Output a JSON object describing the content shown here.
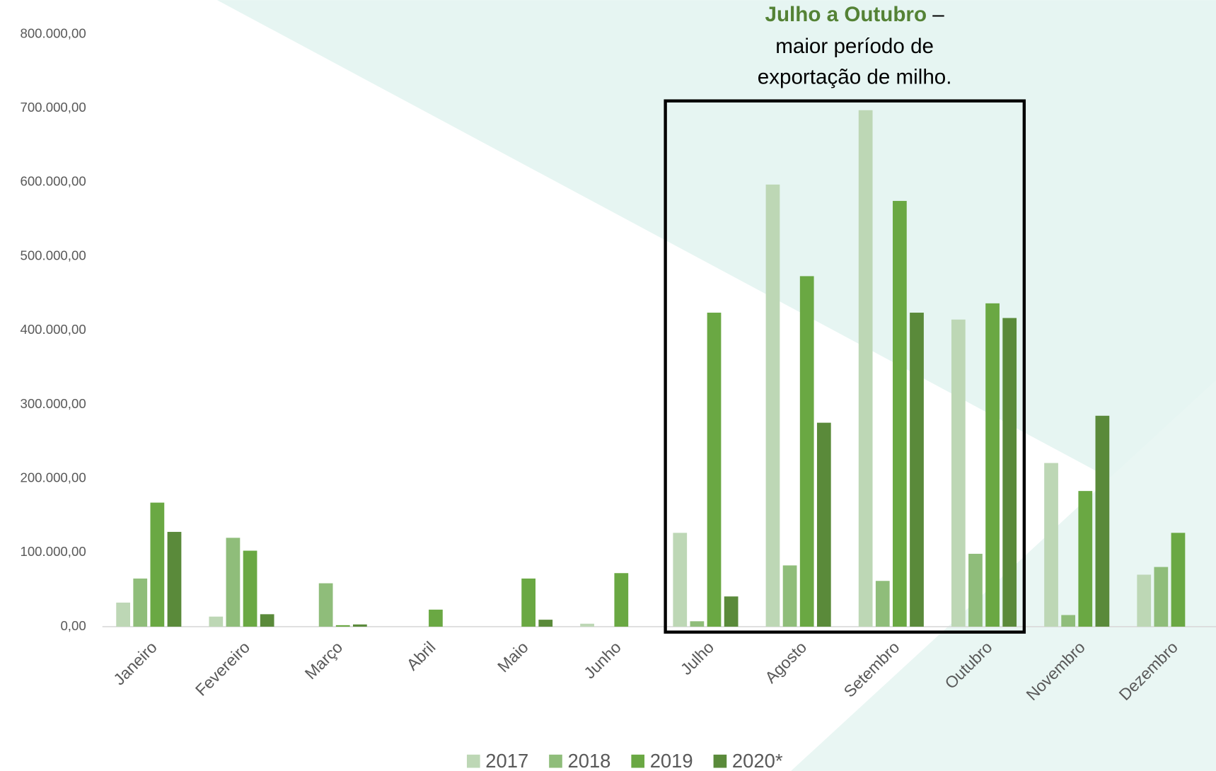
{
  "chart_data": {
    "type": "bar",
    "categories": [
      "Janeiro",
      "Fevereiro",
      "Março",
      "Abril",
      "Maio",
      "Junho",
      "Julho",
      "Agosto",
      "Setembro",
      "Outubro",
      "Novembro",
      "Dezembro"
    ],
    "series": [
      {
        "name": "2017",
        "color": "#bdd7b5",
        "values": [
          32500,
          13600,
          0,
          0,
          0,
          4000,
          126700,
          597000,
          697400,
          414700,
          221000,
          70200
        ]
      },
      {
        "name": "2018",
        "color": "#8fbd7a",
        "values": [
          65000,
          120000,
          58600,
          0,
          0,
          0,
          7300,
          82700,
          61800,
          98400,
          15700,
          80600
        ]
      },
      {
        "name": "2019",
        "color": "#6aa843",
        "values": [
          167500,
          102600,
          2000,
          23000,
          65000,
          72300,
          424000,
          473300,
          574900,
          436600,
          183200,
          126700
        ]
      },
      {
        "name": "2020*",
        "color": "#5a8a3a",
        "values": [
          128000,
          16800,
          3000,
          0,
          9400,
          0,
          40800,
          275400,
          424000,
          416800,
          284800,
          null
        ]
      }
    ],
    "ylim": [
      0,
      800000
    ],
    "yticks": [
      {
        "value": 0,
        "label": "0,00"
      },
      {
        "value": 100000,
        "label": "100.000,00"
      },
      {
        "value": 200000,
        "label": "200.000,00"
      },
      {
        "value": 300000,
        "label": "300.000,00"
      },
      {
        "value": 400000,
        "label": "400.000,00"
      },
      {
        "value": 500000,
        "label": "500.000,00"
      },
      {
        "value": 600000,
        "label": "600.000,00"
      },
      {
        "value": 700000,
        "label": "700.000,00"
      },
      {
        "value": 800000,
        "label": "800.000,00"
      }
    ],
    "annotation": {
      "highlight": "Julho a Outubro",
      "dash": " –",
      "line2": "maior período de",
      "line3": "exportação de milho."
    },
    "legend": "bottom"
  }
}
